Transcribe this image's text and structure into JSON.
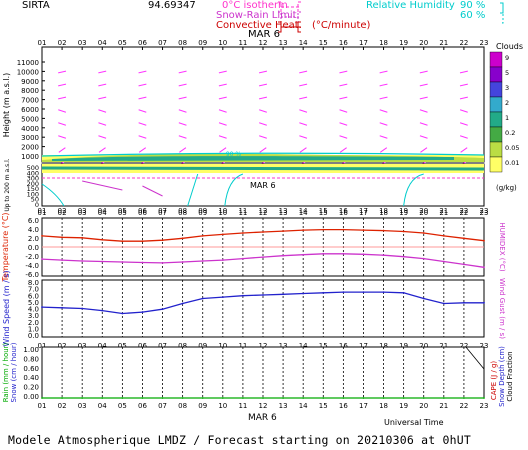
{
  "header": {
    "station": "SIRTA",
    "coords": "94.69347",
    "legend_isotherm": "0°C isotherm",
    "legend_snowrain": "Snow-Rain Limit",
    "legend_convective": "Convective Heat.",
    "legend_convective_unit": "(°C/minute)",
    "legend_rh": "Relative Humidity",
    "legend_rh_90": "90 %",
    "legend_rh_60": "60 %",
    "date_label": "MAR  6"
  },
  "hours": [
    "01",
    "02",
    "03",
    "04",
    "05",
    "06",
    "07",
    "08",
    "09",
    "10",
    "11",
    "12",
    "13",
    "14",
    "15",
    "16",
    "17",
    "18",
    "19",
    "20",
    "21",
    "22",
    "23"
  ],
  "colors": {
    "isotherm": "#ff33cc",
    "snowrain": "#cc33cc",
    "convective": "#cc0000",
    "rh": "#00cccc",
    "temperature": "#dd2200",
    "humidex": "#cc33cc",
    "wind": "#2222cc",
    "rain": "#00aa00",
    "snow": "#2222cc",
    "cape": "#cc0000",
    "arrows": "#ff33ff"
  },
  "clouds_legend": {
    "title": "Clouds",
    "unit": "(g/kg)",
    "levels": [
      "9",
      "5",
      "3",
      "2",
      "1",
      "0.2",
      "0.05",
      "0.01"
    ],
    "colors": [
      "#cc00cc",
      "#8800cc",
      "#4444dd",
      "#33aacc",
      "#22aa88",
      "#44aa44",
      "#bbdd44",
      "#ffff66"
    ]
  },
  "chart_data": [
    {
      "type": "heatmap",
      "title": "Height (m a.s.l.)",
      "ylabel": "Height (m a.s.l.)",
      "yticks": [
        "11000",
        "10000",
        "9000",
        "8000",
        "7000",
        "6000",
        "5000",
        "4000",
        "3000",
        "2000",
        "1000"
      ],
      "lower_ylabel": "Up to 200 m a.s.l.",
      "lower_yticks": [
        "500",
        "400",
        "300",
        "200",
        "150",
        "100",
        "50",
        "0"
      ],
      "cloud_layer_m": [
        900,
        1300
      ],
      "date": "MAR  6"
    },
    {
      "type": "line",
      "ylabel": "Temperature (°C)",
      "ylabel2": "HUMIDEX (°C)",
      "yticks": [
        "6.0",
        "4.0",
        "2.0",
        "0.0",
        "-2.0",
        "-4.0",
        "-6.0"
      ],
      "ylim": [
        -6,
        6
      ],
      "x": [
        "01",
        "02",
        "03",
        "04",
        "05",
        "06",
        "07",
        "08",
        "09",
        "10",
        "11",
        "12",
        "13",
        "14",
        "15",
        "16",
        "17",
        "18",
        "19",
        "20",
        "21",
        "22",
        "23"
      ],
      "series": [
        {
          "values": [
            2.3,
            2.0,
            1.9,
            1.5,
            1.2,
            1.2,
            1.4,
            1.8,
            2.3,
            2.6,
            2.9,
            3.1,
            3.3,
            3.5,
            3.6,
            3.6,
            3.5,
            3.4,
            3.2,
            2.9,
            2.3,
            1.8,
            1.3
          ]
        },
        {
          "values": [
            -2.5,
            -2.7,
            -2.9,
            -3.0,
            -3.1,
            -3.2,
            -3.3,
            -3.1,
            -2.9,
            -2.7,
            -2.4,
            -2.1,
            -1.8,
            -1.6,
            -1.4,
            -1.4,
            -1.5,
            -1.7,
            -2.0,
            -2.4,
            -3.0,
            -3.6,
            -4.2
          ]
        }
      ]
    },
    {
      "type": "line",
      "ylabel": "Wind Speed (m / s)",
      "ylabel2": "Wind Gust (m / s)",
      "yticks": [
        "8.0",
        "7.0",
        "6.0",
        "5.0",
        "4.0",
        "3.0",
        "2.0",
        "1.0",
        "0.0"
      ],
      "ylim": [
        0,
        8
      ],
      "x": [
        "01",
        "02",
        "03",
        "04",
        "05",
        "06",
        "07",
        "08",
        "09",
        "10",
        "11",
        "12",
        "13",
        "14",
        "15",
        "16",
        "17",
        "18",
        "19",
        "20",
        "21",
        "22",
        "23"
      ],
      "series": [
        {
          "values": [
            4.2,
            4.1,
            4.0,
            3.7,
            3.3,
            3.5,
            3.9,
            4.7,
            5.4,
            5.6,
            5.8,
            5.9,
            6.0,
            6.1,
            6.2,
            6.3,
            6.3,
            6.3,
            6.2,
            5.4,
            4.7,
            4.8,
            4.8
          ]
        }
      ]
    },
    {
      "type": "line",
      "ylabel": "Rain (mm / hour)",
      "ylabel_b": "Snow (cm / hour)",
      "ylabel2": "CAPE (J / g)",
      "ylabel2_b": "Snow Depth (cm)",
      "ylabel2_c": "Cloud Fraction",
      "yticks": [
        "1.00",
        "0.80",
        "0.60",
        "0.40",
        "0.20",
        "0.00"
      ],
      "ylim": [
        0,
        1
      ],
      "x": [
        "01",
        "02",
        "03",
        "04",
        "05",
        "06",
        "07",
        "08",
        "09",
        "10",
        "11",
        "12",
        "13",
        "14",
        "15",
        "16",
        "17",
        "18",
        "19",
        "20",
        "21",
        "22",
        "23"
      ],
      "series": [
        {
          "values": [
            0,
            0,
            0,
            0,
            0,
            0,
            0,
            0,
            0,
            0,
            0,
            0,
            0,
            0,
            0,
            0,
            0,
            0,
            0,
            0,
            0,
            0,
            0
          ]
        }
      ]
    }
  ],
  "footer": {
    "universal_time": "Universal Time",
    "date_label": "MAR  6",
    "forecast": "Modele Atmospherique LMDZ / Forecast starting on 20210306 at 0hUT"
  }
}
